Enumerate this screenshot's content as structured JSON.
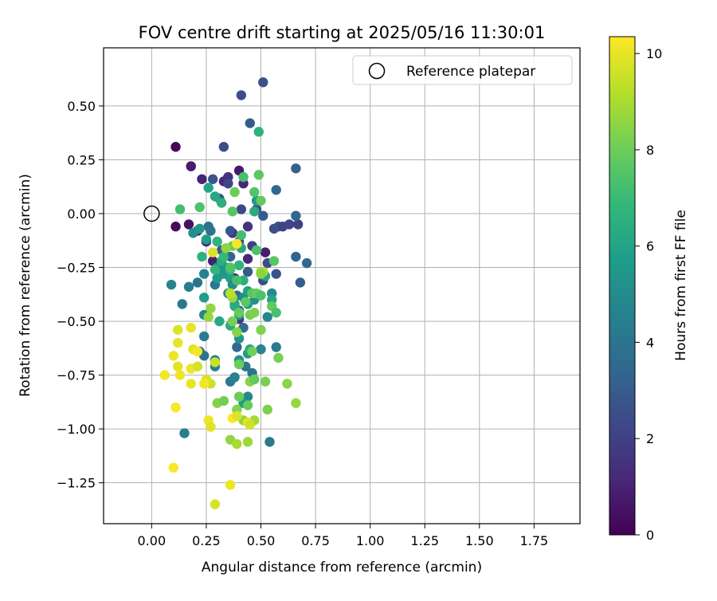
{
  "chart_data": {
    "type": "scatter",
    "title": "FOV centre drift starting at 2025/05/16 11:30:01",
    "xlabel": "Angular distance from reference (arcmin)",
    "ylabel": "Rotation from reference (arcmin)",
    "xlim": [
      -0.22,
      1.96
    ],
    "ylim": [
      -1.44,
      0.77
    ],
    "xticks": [
      0.0,
      0.25,
      0.5,
      0.75,
      1.0,
      1.25,
      1.5,
      1.75
    ],
    "yticks": [
      -1.25,
      -1.0,
      -0.75,
      -0.5,
      -0.25,
      0.0,
      0.25,
      0.5
    ],
    "xtick_labels": [
      "0.00",
      "0.25",
      "0.50",
      "0.75",
      "1.00",
      "1.25",
      "1.50",
      "1.75"
    ],
    "ytick_labels": [
      "−1.25",
      "−1.00",
      "−0.75",
      "−0.50",
      "−0.25",
      "0.00",
      "0.25",
      "0.50"
    ],
    "grid": true,
    "legend": {
      "position": "top-right",
      "entries": [
        {
          "label": "Reference platepar",
          "marker": "open-circle"
        }
      ]
    },
    "reference_point": {
      "x": 0.0,
      "y": 0.0
    },
    "colorbar": {
      "label": "Hours from first FF file",
      "colormap": "viridis",
      "range": [
        0,
        10.35
      ],
      "ticks": [
        0,
        2,
        4,
        6,
        8,
        10
      ],
      "tick_labels": [
        "0",
        "2",
        "4",
        "6",
        "8",
        "10"
      ],
      "colors": [
        "#440154",
        "#482878",
        "#3e4989",
        "#31688e",
        "#26828e",
        "#1f9e89",
        "#35b779",
        "#6ece58",
        "#b5de2b",
        "#fde725"
      ]
    },
    "points": [
      [
        0.11,
        0.31,
        0.2
      ],
      [
        0.18,
        0.22,
        0.4
      ],
      [
        0.18,
        0.22,
        0.8
      ],
      [
        0.23,
        0.16,
        1.0
      ],
      [
        0.33,
        0.15,
        1.2
      ],
      [
        0.4,
        0.2,
        0.7
      ],
      [
        0.11,
        -0.06,
        0.3
      ],
      [
        0.17,
        -0.05,
        0.5
      ],
      [
        0.21,
        -0.08,
        1.0
      ],
      [
        0.35,
        0.17,
        1.5
      ],
      [
        0.42,
        0.14,
        1.1
      ],
      [
        0.37,
        -0.09,
        1.4
      ],
      [
        0.28,
        -0.22,
        0.9
      ],
      [
        0.44,
        -0.06,
        1.6
      ],
      [
        0.52,
        -0.18,
        0.8
      ],
      [
        0.4,
        -0.49,
        1.8
      ],
      [
        0.38,
        -0.3,
        1.3
      ],
      [
        0.44,
        -0.21,
        1.2
      ],
      [
        0.46,
        -0.15,
        2.0
      ],
      [
        0.25,
        -0.13,
        1.1
      ],
      [
        0.41,
        0.55,
        2.5
      ],
      [
        0.51,
        0.61,
        2.6
      ],
      [
        0.45,
        0.42,
        3.0
      ],
      [
        0.33,
        0.31,
        2.4
      ],
      [
        0.28,
        0.16,
        2.8
      ],
      [
        0.35,
        0.14,
        2.2
      ],
      [
        0.31,
        0.07,
        2.9
      ],
      [
        0.41,
        0.02,
        2.3
      ],
      [
        0.48,
        0.02,
        2.7
      ],
      [
        0.51,
        -0.01,
        3.0
      ],
      [
        0.56,
        -0.07,
        2.5
      ],
      [
        0.58,
        -0.06,
        2.6
      ],
      [
        0.6,
        -0.06,
        2.1
      ],
      [
        0.63,
        -0.05,
        2.2
      ],
      [
        0.67,
        -0.05,
        2.0
      ],
      [
        0.66,
        0.21,
        3.2
      ],
      [
        0.57,
        0.11,
        3.4
      ],
      [
        0.66,
        -0.01,
        3.5
      ],
      [
        0.36,
        -0.08,
        2.8
      ],
      [
        0.4,
        -0.13,
        2.6
      ],
      [
        0.44,
        -0.27,
        2.9
      ],
      [
        0.53,
        -0.23,
        2.4
      ],
      [
        0.57,
        -0.28,
        2.7
      ],
      [
        0.51,
        -0.31,
        2.5
      ],
      [
        0.66,
        -0.2,
        3.3
      ],
      [
        0.71,
        -0.23,
        3.5
      ],
      [
        0.68,
        -0.32,
        3.1
      ],
      [
        0.32,
        -0.17,
        3.0
      ],
      [
        0.36,
        -0.2,
        3.3
      ],
      [
        0.39,
        -0.38,
        3.6
      ],
      [
        0.4,
        -0.45,
        3.2
      ],
      [
        0.42,
        -0.53,
        3.7
      ],
      [
        0.39,
        -0.62,
        3.4
      ],
      [
        0.26,
        -0.06,
        3.8
      ],
      [
        0.27,
        -0.08,
        4.0
      ],
      [
        0.29,
        -0.33,
        4.2
      ],
      [
        0.24,
        -0.28,
        4.5
      ],
      [
        0.21,
        -0.32,
        4.0
      ],
      [
        0.17,
        -0.34,
        4.4
      ],
      [
        0.09,
        -0.33,
        4.6
      ],
      [
        0.14,
        -0.42,
        4.2
      ],
      [
        0.24,
        -0.47,
        4.8
      ],
      [
        0.24,
        -0.57,
        4.4
      ],
      [
        0.22,
        -0.64,
        4.1
      ],
      [
        0.24,
        -0.66,
        4.0
      ],
      [
        0.29,
        -0.68,
        4.3
      ],
      [
        0.29,
        -0.71,
        4.5
      ],
      [
        0.36,
        -0.78,
        4.2
      ],
      [
        0.38,
        -0.76,
        4.6
      ],
      [
        0.43,
        -0.71,
        4.1
      ],
      [
        0.44,
        -0.85,
        4.8
      ],
      [
        0.46,
        -0.74,
        4.0
      ],
      [
        0.5,
        -0.63,
        4.7
      ],
      [
        0.53,
        -0.48,
        4.9
      ],
      [
        0.57,
        -0.62,
        4.3
      ],
      [
        0.55,
        -0.37,
        5.0
      ],
      [
        0.54,
        -1.06,
        4.2
      ],
      [
        0.15,
        -1.02,
        4.4
      ],
      [
        0.35,
        -0.37,
        4.9
      ],
      [
        0.42,
        -0.39,
        5.0
      ],
      [
        0.19,
        -0.09,
        5.2
      ],
      [
        0.22,
        -0.07,
        5.5
      ],
      [
        0.24,
        -0.39,
        5.7
      ],
      [
        0.25,
        -0.12,
        5.8
      ],
      [
        0.3,
        -0.25,
        5.3
      ],
      [
        0.3,
        -0.3,
        5.6
      ],
      [
        0.33,
        -0.28,
        5.5
      ],
      [
        0.34,
        -0.25,
        5.4
      ],
      [
        0.36,
        -0.3,
        5.9
      ],
      [
        0.37,
        -0.33,
        5.1
      ],
      [
        0.38,
        -0.42,
        5.6
      ],
      [
        0.4,
        -0.47,
        5.3
      ],
      [
        0.44,
        -0.42,
        5.8
      ],
      [
        0.47,
        -0.4,
        5.2
      ],
      [
        0.48,
        0.06,
        5.5
      ],
      [
        0.4,
        -0.58,
        5.4
      ],
      [
        0.4,
        -0.68,
        5.3
      ],
      [
        0.44,
        -0.65,
        5.7
      ],
      [
        0.42,
        -0.88,
        5.6
      ],
      [
        0.44,
        -0.36,
        5.9
      ],
      [
        0.26,
        0.12,
        6.0
      ],
      [
        0.29,
        0.08,
        6.2
      ],
      [
        0.32,
        0.05,
        6.5
      ],
      [
        0.47,
        0.01,
        6.3
      ],
      [
        0.49,
        0.38,
        6.6
      ],
      [
        0.45,
        -0.63,
        6.1
      ],
      [
        0.32,
        -0.22,
        6.4
      ],
      [
        0.41,
        -0.16,
        6.2
      ],
      [
        0.52,
        -0.29,
        6.0
      ],
      [
        0.3,
        -0.13,
        6.7
      ],
      [
        0.38,
        -0.43,
        6.3
      ],
      [
        0.42,
        -0.31,
        6.5
      ],
      [
        0.55,
        -0.4,
        6.1
      ],
      [
        0.36,
        -0.52,
        6.4
      ],
      [
        0.31,
        -0.5,
        6.2
      ],
      [
        0.23,
        -0.2,
        6.6
      ],
      [
        0.29,
        -0.26,
        6.8
      ],
      [
        0.33,
        -0.2,
        6.9
      ],
      [
        0.36,
        -0.26,
        7.0
      ],
      [
        0.4,
        -0.24,
        6.7
      ],
      [
        0.13,
        0.02,
        7.2
      ],
      [
        0.22,
        0.03,
        7.4
      ],
      [
        0.37,
        0.01,
        7.6
      ],
      [
        0.42,
        0.17,
        7.3
      ],
      [
        0.49,
        0.18,
        7.7
      ],
      [
        0.47,
        0.1,
        7.5
      ],
      [
        0.5,
        0.06,
        7.8
      ],
      [
        0.38,
        0.1,
        8.0
      ],
      [
        0.41,
        -0.1,
        7.2
      ],
      [
        0.48,
        -0.17,
        7.4
      ],
      [
        0.56,
        -0.22,
        7.6
      ],
      [
        0.37,
        -0.15,
        7.9
      ],
      [
        0.36,
        -0.25,
        7.5
      ],
      [
        0.39,
        -0.31,
        7.3
      ],
      [
        0.43,
        -0.41,
        7.7
      ],
      [
        0.46,
        -0.37,
        7.6
      ],
      [
        0.48,
        -0.37,
        7.9
      ],
      [
        0.5,
        -0.38,
        7.4
      ],
      [
        0.55,
        -0.43,
        7.8
      ],
      [
        0.57,
        -0.46,
        7.3
      ],
      [
        0.45,
        -0.47,
        8.1
      ],
      [
        0.47,
        -0.46,
        8.3
      ],
      [
        0.4,
        -0.46,
        7.9
      ],
      [
        0.37,
        -0.5,
        8.2
      ],
      [
        0.39,
        -0.55,
        8.4
      ],
      [
        0.4,
        -0.7,
        8.0
      ],
      [
        0.46,
        -0.64,
        8.1
      ],
      [
        0.5,
        -0.54,
        8.3
      ],
      [
        0.52,
        -0.78,
        8.2
      ],
      [
        0.45,
        -0.78,
        8.5
      ],
      [
        0.47,
        -0.77,
        7.8
      ],
      [
        0.39,
        -0.91,
        8.4
      ],
      [
        0.4,
        -0.85,
        8.0
      ],
      [
        0.44,
        -0.89,
        7.9
      ],
      [
        0.53,
        -0.91,
        8.3
      ],
      [
        0.62,
        -0.79,
        8.5
      ],
      [
        0.66,
        -0.88,
        8.7
      ],
      [
        0.58,
        -0.67,
        8.2
      ],
      [
        0.34,
        -0.16,
        8.6
      ],
      [
        0.37,
        -0.39,
        8.8
      ],
      [
        0.5,
        -0.27,
        8.9
      ],
      [
        0.51,
        -0.27,
        9.0
      ],
      [
        0.5,
        -0.28,
        8.5
      ],
      [
        0.27,
        -0.44,
        8.6
      ],
      [
        0.26,
        -0.48,
        8.7
      ],
      [
        0.3,
        -0.88,
        8.4
      ],
      [
        0.33,
        -0.87,
        8.1
      ],
      [
        0.36,
        -1.05,
        8.6
      ],
      [
        0.39,
        -1.07,
        9.0
      ],
      [
        0.44,
        -1.06,
        8.8
      ],
      [
        0.42,
        -0.96,
        8.7
      ],
      [
        0.47,
        -0.96,
        8.9
      ],
      [
        0.36,
        -0.37,
        9.3
      ],
      [
        0.29,
        -0.69,
        9.5
      ],
      [
        0.27,
        -0.79,
        9.6
      ],
      [
        0.12,
        -0.54,
        9.8
      ],
      [
        0.12,
        -0.6,
        10.0
      ],
      [
        0.1,
        -0.66,
        10.1
      ],
      [
        0.06,
        -0.75,
        10.2
      ],
      [
        0.12,
        -0.71,
        9.9
      ],
      [
        0.13,
        -0.75,
        10.1
      ],
      [
        0.11,
        -0.9,
        10.3
      ],
      [
        0.18,
        -0.53,
        10.0
      ],
      [
        0.19,
        -0.63,
        9.9
      ],
      [
        0.21,
        -0.64,
        10.2
      ],
      [
        0.18,
        -0.72,
        10.1
      ],
      [
        0.21,
        -0.71,
        9.7
      ],
      [
        0.18,
        -0.79,
        10.0
      ],
      [
        0.25,
        -0.77,
        9.8
      ],
      [
        0.24,
        -0.79,
        10.2
      ],
      [
        0.26,
        -0.96,
        10.1
      ],
      [
        0.27,
        -0.99,
        9.9
      ],
      [
        0.37,
        -0.95,
        10.3
      ],
      [
        0.39,
        -0.94,
        9.8
      ],
      [
        0.44,
        -0.97,
        10.0
      ],
      [
        0.45,
        -0.98,
        9.6
      ],
      [
        0.1,
        -1.18,
        10.3
      ],
      [
        0.36,
        -1.26,
        10.1
      ],
      [
        0.29,
        -1.35,
        9.7
      ],
      [
        0.39,
        -0.14,
        10.2
      ],
      [
        0.28,
        -0.18,
        9.8
      ]
    ]
  }
}
